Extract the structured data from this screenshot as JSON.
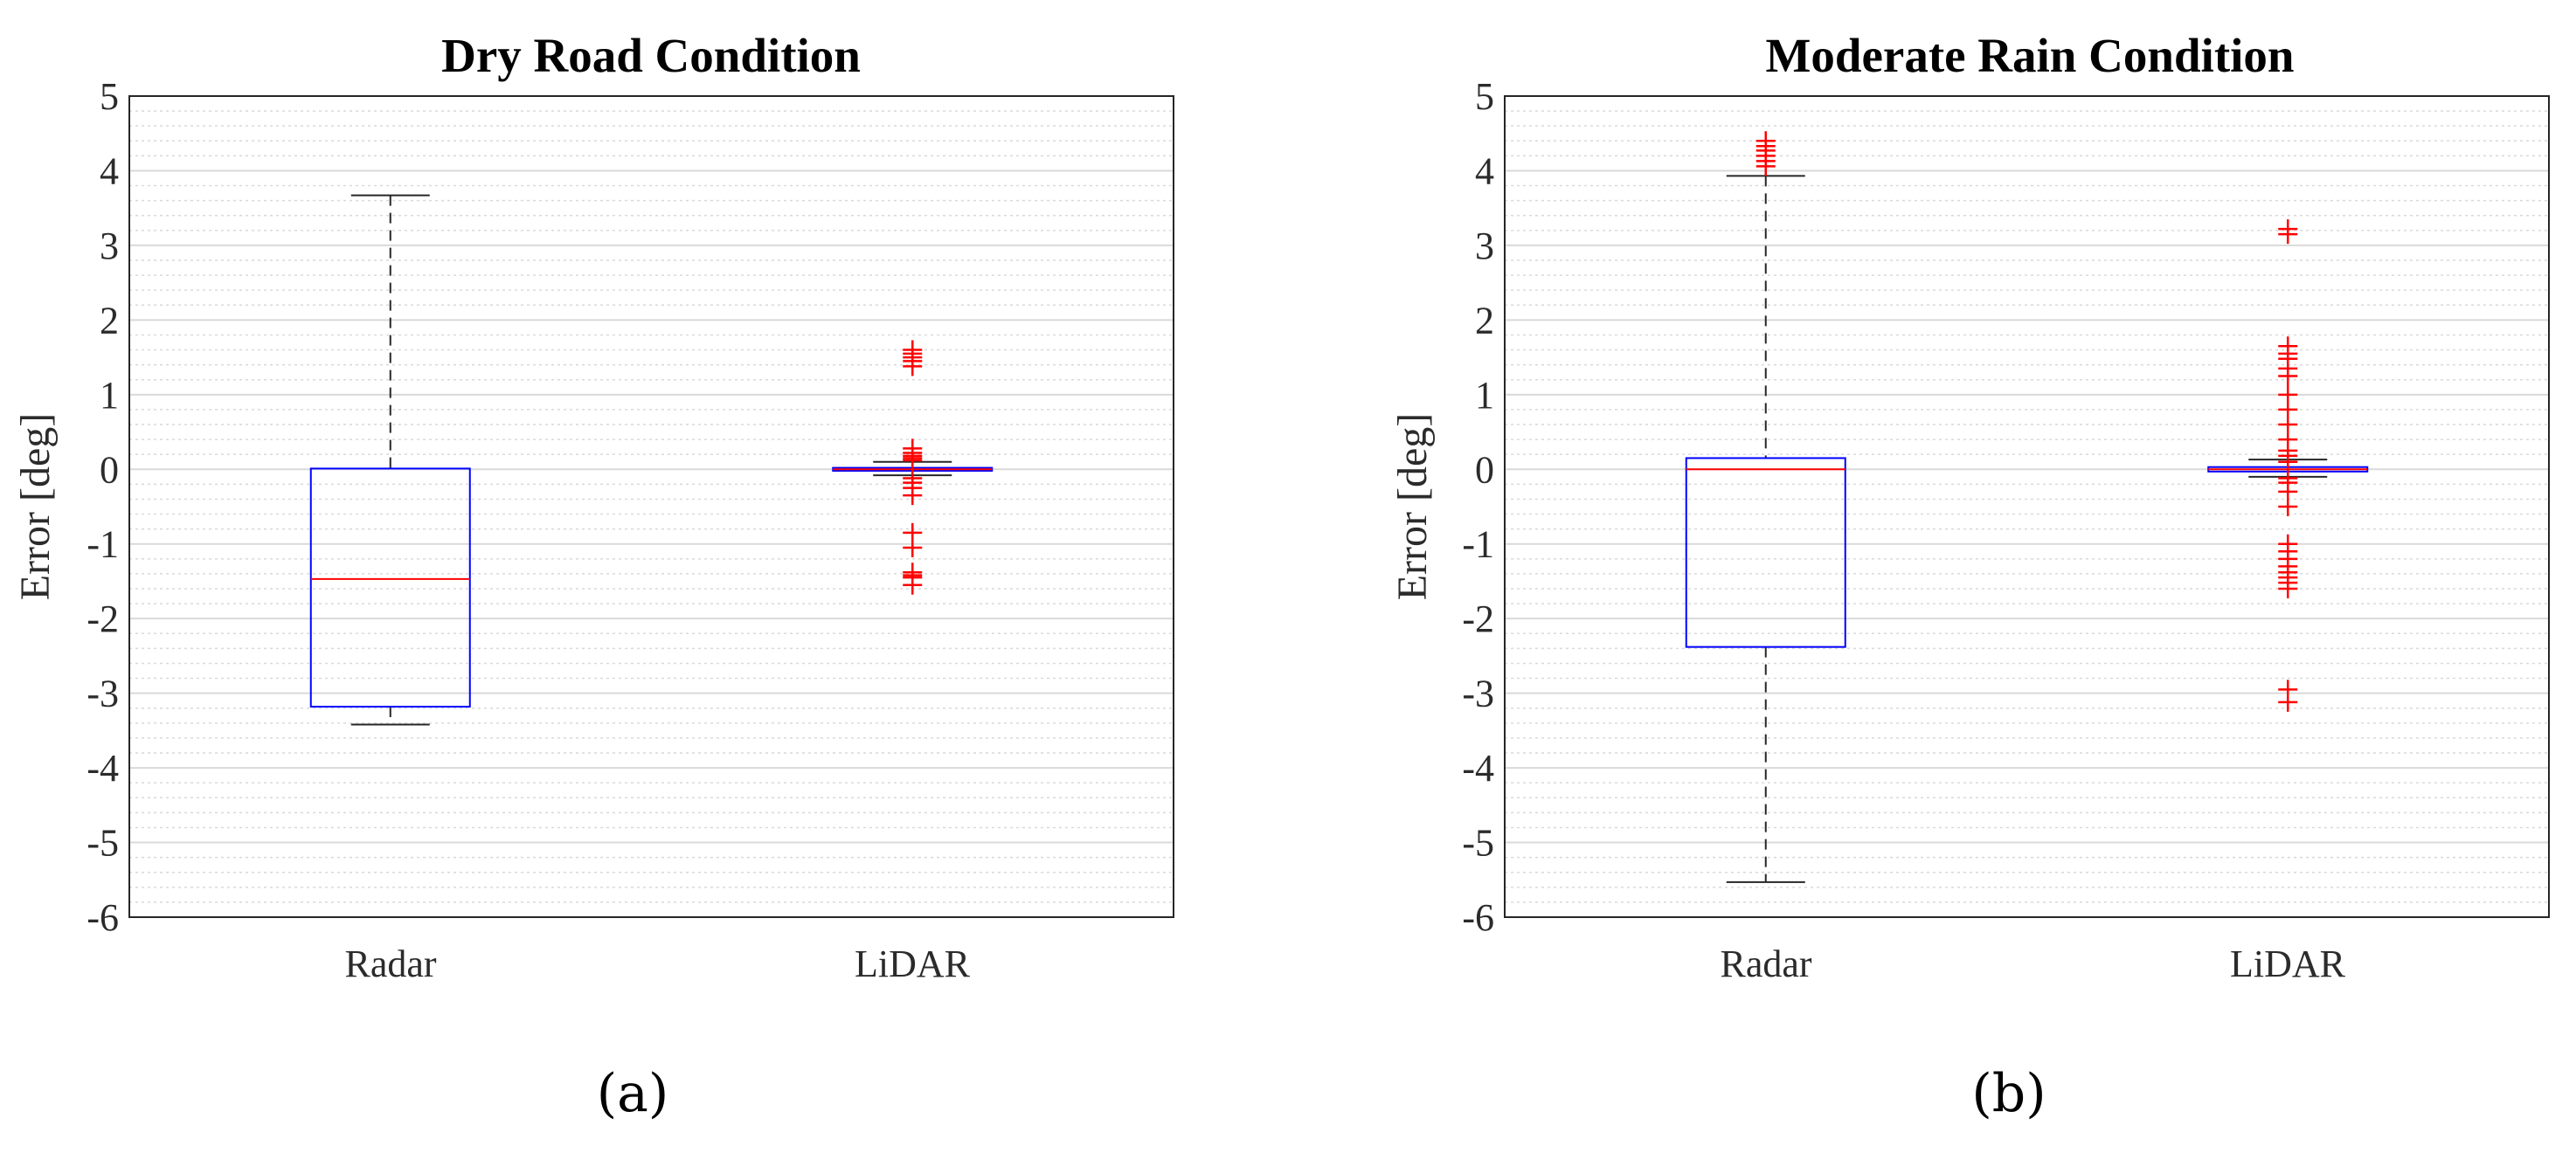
{
  "chart_data": [
    {
      "type": "boxplot",
      "title": "Dry Road Condition",
      "ylabel": "Error [deg]",
      "xlabel": "",
      "caption": "(a)",
      "ylim": [
        -6,
        5
      ],
      "yticks": [
        "5",
        "4",
        "3",
        "2",
        "1",
        "0",
        "-1",
        "-2",
        "-3",
        "-4",
        "-5",
        "-6"
      ],
      "grid": "major and minor",
      "categories": [
        "Radar",
        "LiDAR"
      ],
      "boxes": [
        {
          "name": "Radar",
          "whisker_low": -3.42,
          "q1": -3.18,
          "median": -1.47,
          "q3": 0.01,
          "whisker_high": 3.67,
          "outliers": []
        },
        {
          "name": "LiDAR",
          "whisker_low": -0.08,
          "q1": -0.02,
          "median": 0.0,
          "q3": 0.02,
          "whisker_high": 0.1,
          "outliers": [
            1.6,
            1.55,
            1.5,
            1.45,
            1.38,
            0.28,
            0.22,
            0.18,
            0.15,
            0.12,
            -0.12,
            -0.18,
            -0.25,
            -0.35,
            -0.85,
            -1.05,
            -1.38,
            -1.42,
            -1.45,
            -1.55
          ]
        }
      ]
    },
    {
      "type": "boxplot",
      "title": "Moderate Rain Condition",
      "ylabel": "Error [deg]",
      "xlabel": "",
      "caption": "(b)",
      "ylim": [
        -6,
        5
      ],
      "yticks": [
        "5",
        "4",
        "3",
        "2",
        "1",
        "0",
        "-1",
        "-2",
        "-3",
        "-4",
        "-5",
        "-6"
      ],
      "grid": "major and minor",
      "categories": [
        "Radar",
        "LiDAR"
      ],
      "boxes": [
        {
          "name": "Radar",
          "whisker_low": -5.53,
          "q1": -2.38,
          "median": 0.0,
          "q3": 0.15,
          "whisker_high": 3.93,
          "outliers": [
            4.4,
            4.33,
            4.27,
            4.2,
            4.13,
            4.06
          ]
        },
        {
          "name": "LiDAR",
          "whisker_low": -0.1,
          "q1": -0.03,
          "median": 0.0,
          "q3": 0.03,
          "whisker_high": 0.13,
          "outliers": [
            3.22,
            3.15,
            1.65,
            1.55,
            1.48,
            1.35,
            1.25,
            1.0,
            0.8,
            0.6,
            0.4,
            0.25,
            0.18,
            0.1,
            -0.12,
            -0.18,
            -0.3,
            -0.5,
            -1.0,
            -1.1,
            -1.2,
            -1.3,
            -1.38,
            -1.45,
            -1.52,
            -1.6,
            -2.95,
            -3.12
          ]
        }
      ]
    }
  ],
  "style": {
    "box_color": "#0000ff",
    "median_color": "#ff0000",
    "outlier_color": "#ff0000",
    "whisker_color": "#262626"
  }
}
